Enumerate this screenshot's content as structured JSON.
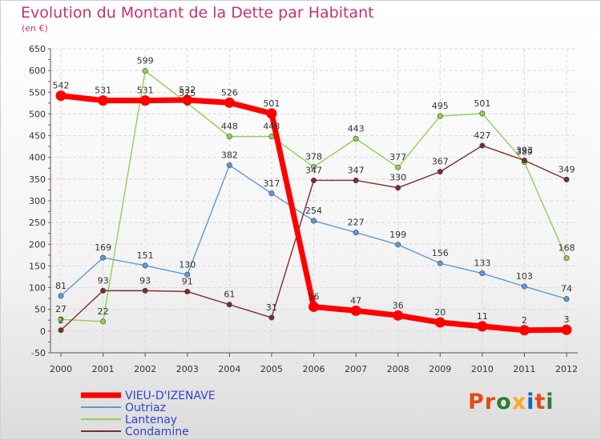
{
  "header": {
    "title": "Evolution du Montant de la Dette par Habitant",
    "subtitle": "(en €)"
  },
  "logo": {
    "text": "Proxiti",
    "colors": [
      "#e64a19",
      "#e64a19",
      "#2e7d32",
      "#f9a825",
      "#1565c0",
      "#e64a19",
      "#2e7d32"
    ]
  },
  "chart_data": {
    "type": "line",
    "categories": [
      "2000",
      "2001",
      "2002",
      "2003",
      "2004",
      "2005",
      "2006",
      "2007",
      "2008",
      "2009",
      "2010",
      "2011",
      "2012"
    ],
    "ylim": [
      -50,
      650
    ],
    "yticks": [
      -50,
      0,
      50,
      100,
      150,
      200,
      250,
      300,
      350,
      400,
      450,
      500,
      550,
      600,
      650
    ],
    "grid": true,
    "legend_position": "bottom-left",
    "series": [
      {
        "name": "VIEU-D'IZENAVE",
        "color": "#ff0000",
        "values": [
          542,
          531,
          531,
          532,
          526,
          501,
          56,
          47,
          36,
          20,
          11,
          2,
          3
        ]
      },
      {
        "name": "Outriaz",
        "color": "#5b9bd5",
        "values": [
          81,
          169,
          151,
          130,
          382,
          317,
          254,
          227,
          199,
          156,
          133,
          103,
          74
        ]
      },
      {
        "name": "Lantenay",
        "color": "#92d050",
        "values": [
          27,
          22,
          599,
          525,
          448,
          448,
          378,
          443,
          377,
          495,
          501,
          389,
          168
        ]
      },
      {
        "name": "Condamine",
        "color": "#7b2d2d",
        "values": [
          2,
          93,
          93,
          91,
          61,
          31,
          347,
          347,
          330,
          367,
          427,
          393,
          349
        ]
      }
    ]
  }
}
